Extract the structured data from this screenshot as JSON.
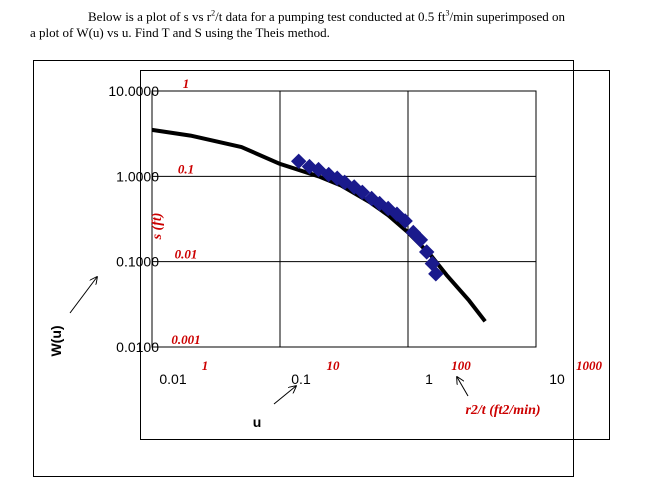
{
  "prompt": {
    "line1_before": "Below is a plot of s vs r",
    "line1_sup": "2",
    "line1_after": "/t data for a pumping test conducted at 0.5 ft",
    "line1_sup2": "3",
    "line1_end": "/min superimposed on",
    "line2": "a plot of W(u) vs u.  Find T and S using the Theis method."
  },
  "chart_data": [
    {
      "type": "line",
      "name_id": "theis-type-curve",
      "x_scale": "log",
      "y_scale": "log",
      "xlabel": "u",
      "ylabel": "W(u)",
      "xlim": [
        0.01,
        10
      ],
      "ylim": [
        0.01,
        10
      ],
      "x_ticks": [
        "0.01",
        "0.1",
        "1",
        "10"
      ],
      "y_ticks": [
        "10.0000",
        "1.0000",
        "0.1000",
        "0.0100"
      ],
      "grid": true,
      "series": [
        {
          "color": "#000000",
          "points": [
            [
              0.01,
              3.5
            ],
            [
              0.02,
              3.0
            ],
            [
              0.05,
              2.2
            ],
            [
              0.1,
              1.4
            ],
            [
              0.2,
              1.0
            ],
            [
              0.3,
              0.78
            ],
            [
              0.5,
              0.5
            ],
            [
              0.7,
              0.35
            ],
            [
              1.0,
              0.22
            ],
            [
              1.5,
              0.12
            ],
            [
              2.0,
              0.07
            ],
            [
              3.0,
              0.035
            ],
            [
              4.0,
              0.02
            ]
          ]
        }
      ]
    },
    {
      "type": "scatter",
      "name_id": "drawdown-data",
      "x_scale": "log",
      "y_scale": "log",
      "xlabel": "r2/t (ft2/min)",
      "ylabel": "s (ft)",
      "xlim": [
        1,
        1000
      ],
      "ylim": [
        0.001,
        1
      ],
      "x_ticks": [
        "1",
        "10",
        "100",
        "1000"
      ],
      "y_ticks": [
        "1",
        "0.1",
        "0.01",
        "0.001"
      ],
      "series": [
        {
          "color": "#1a1a8c",
          "points": [
            [
              14,
              0.15
            ],
            [
              17,
              0.13
            ],
            [
              20,
              0.12
            ],
            [
              24,
              0.105
            ],
            [
              28,
              0.095
            ],
            [
              32,
              0.085
            ],
            [
              38,
              0.075
            ],
            [
              44,
              0.065
            ],
            [
              52,
              0.055
            ],
            [
              60,
              0.048
            ],
            [
              70,
              0.042
            ],
            [
              82,
              0.036
            ],
            [
              95,
              0.03
            ],
            [
              110,
              0.022
            ],
            [
              125,
              0.018
            ],
            [
              140,
              0.013
            ],
            [
              155,
              0.0095
            ],
            [
              165,
              0.0072
            ]
          ]
        }
      ]
    }
  ],
  "annotations": {
    "u_arrow_label": "u",
    "wu_rotated_label": "W(u)",
    "r2t_arrow_label": "r2/t (ft2/min)"
  }
}
